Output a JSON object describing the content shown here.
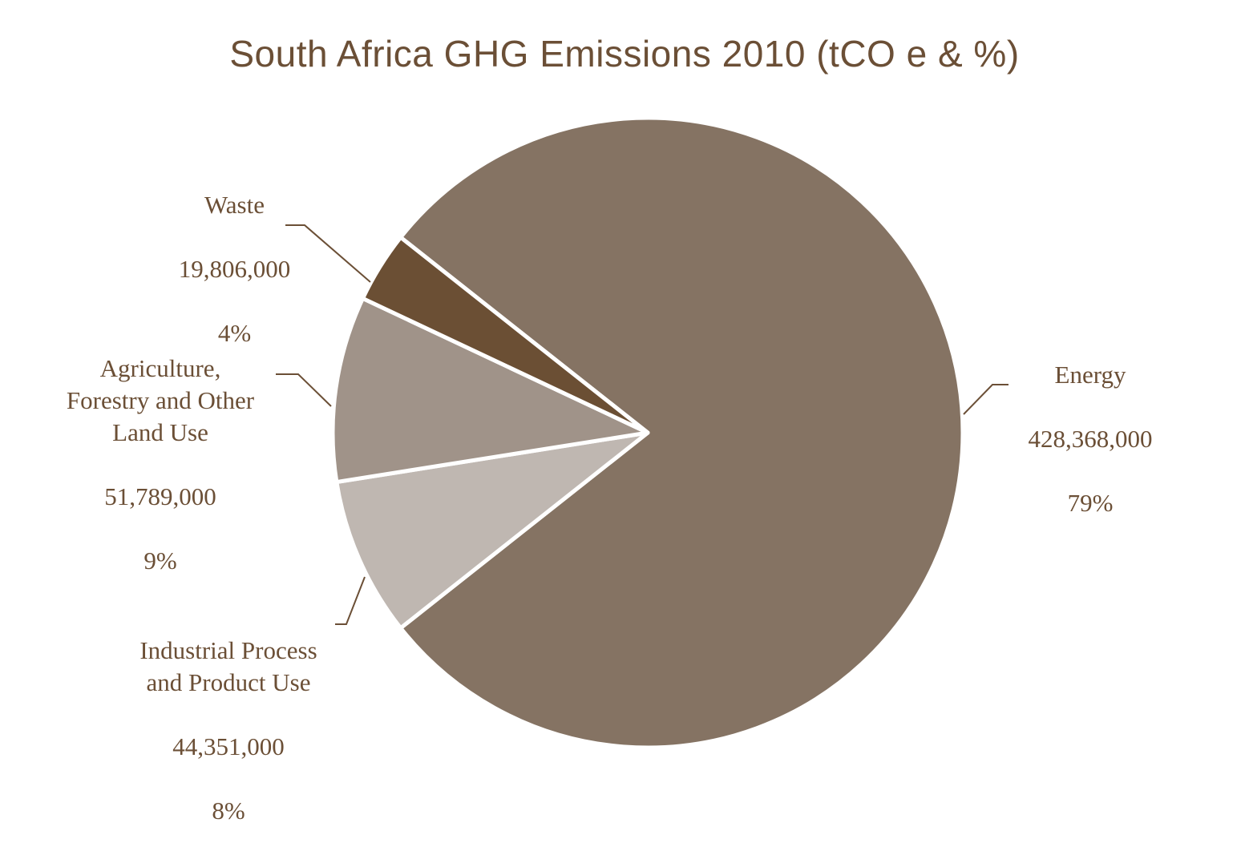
{
  "chart_data": {
    "type": "pie",
    "title": "South Africa GHG Emissions 2010 (tCO  e & %)",
    "slices": [
      {
        "name": "Energy",
        "value": 428368000,
        "value_label": "428,368,000",
        "percent_label": "79%",
        "color": "#857363"
      },
      {
        "name": "Industrial Process\nand Product Use",
        "value": 44351000,
        "value_label": "44,351,000",
        "percent_label": "8%",
        "color": "#bfb7b1"
      },
      {
        "name": "Agriculture,\nForestry and Other\nLand Use",
        "value": 51789000,
        "value_label": "51,789,000",
        "percent_label": "9%",
        "color": "#a09389"
      },
      {
        "name": "Waste",
        "value": 19806000,
        "value_label": "19,806,000",
        "percent_label": "4%",
        "color": "#6b4f34"
      }
    ],
    "label_color": "#6b4f36",
    "leader_line_color": "#6b4f36",
    "slice_border_color": "#ffffff",
    "legend": "none"
  }
}
